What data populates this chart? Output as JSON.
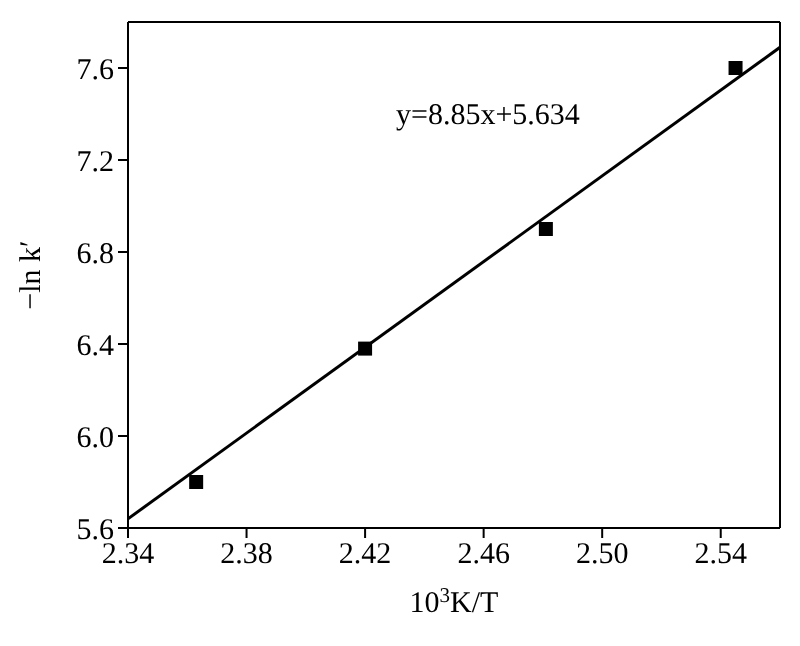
{
  "chart_data": {
    "type": "scatter",
    "xlabel": "10$^{3}$K/T",
    "ylabel": "−ln k′",
    "annotations": [
      "y=8.85x+5.634"
    ],
    "x": [
      2.363,
      2.42,
      2.481,
      2.545
    ],
    "series": [
      {
        "color": "#000000",
        "marker": "square",
        "values": [
          5.8,
          6.38,
          6.9,
          7.6
        ]
      },
      {
        "type": "line",
        "color": "#000000",
        "x": [
          2.34,
          2.56
        ],
        "values": [
          5.64,
          7.69
        ]
      }
    ],
    "xlim": [
      2.34,
      2.56
    ],
    "xticks": [
      2.34,
      2.38,
      2.42,
      2.46,
      {
        "value": 2.5,
        "label": "2.50"
      },
      2.54
    ],
    "ylim": [
      5.6,
      7.8
    ],
    "yticks": [
      5.6,
      {
        "value": 6.0,
        "label": "6.0"
      },
      6.4,
      6.8,
      7.2,
      7.6
    ]
  }
}
